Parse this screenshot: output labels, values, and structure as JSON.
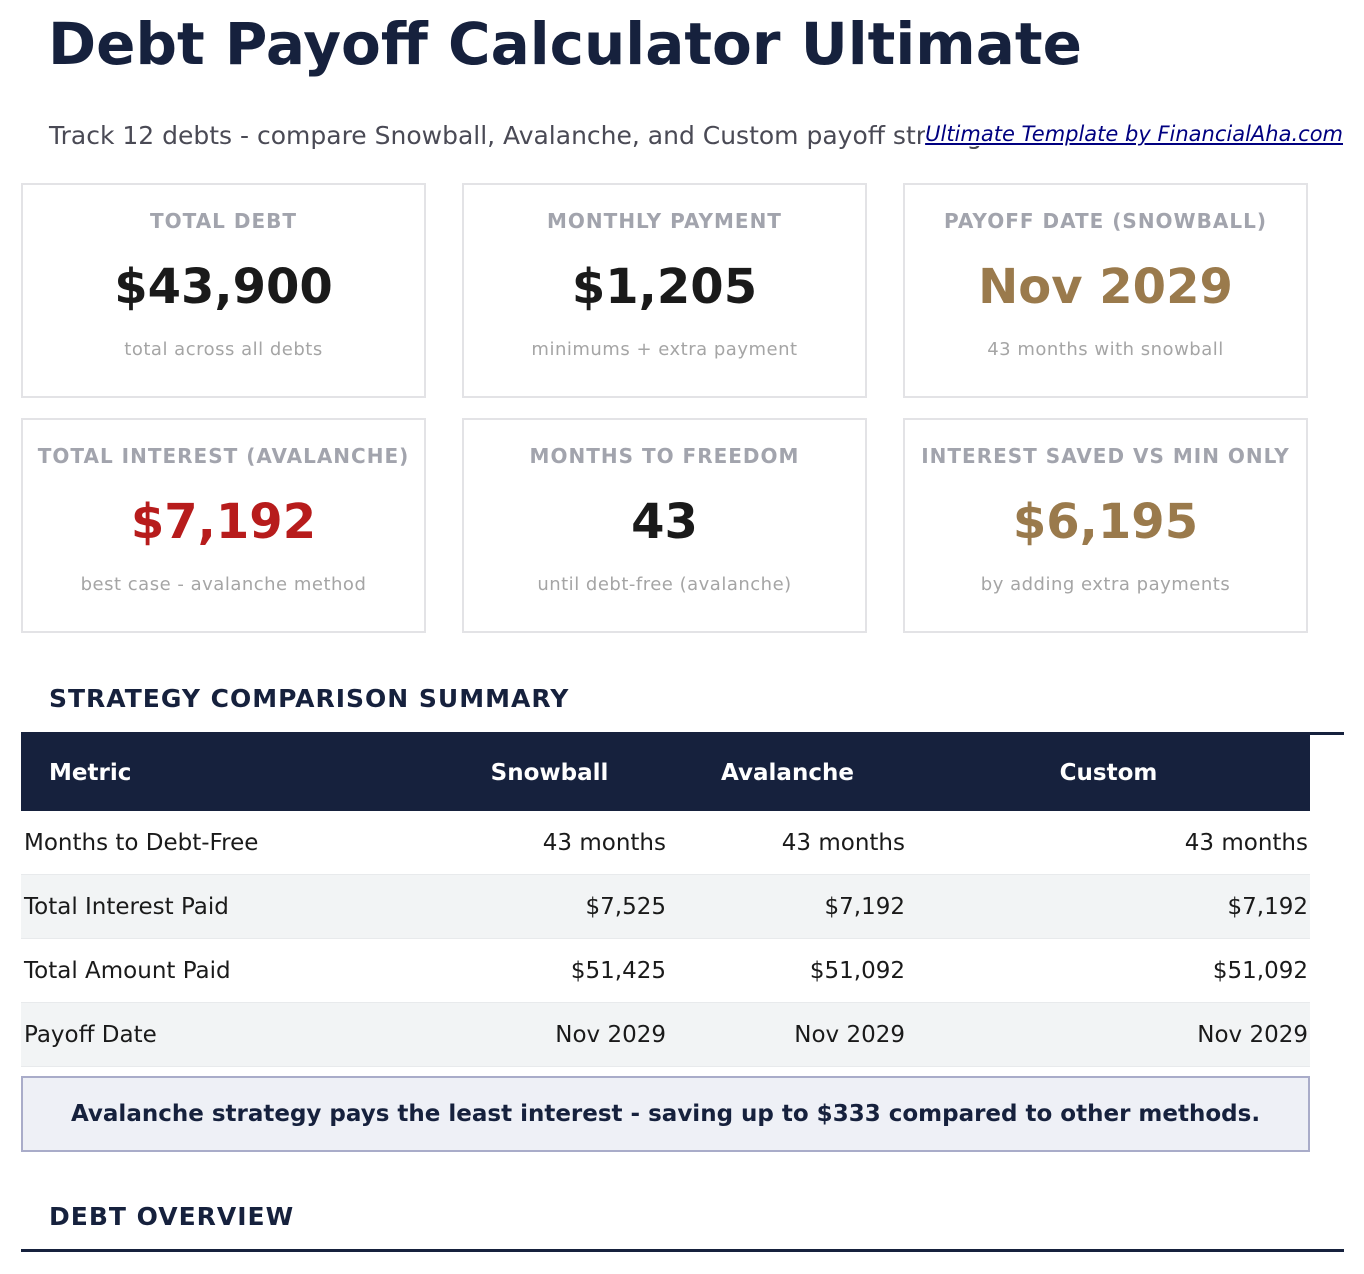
{
  "header": {
    "title": "Debt Payoff Calculator Ultimate",
    "subtitle": "Track 12 debts - compare Snowball, Avalanche, and Custom payoff strategies",
    "credit": "Ultimate Template by FinancialAha.com"
  },
  "cards": [
    {
      "label": "TOTAL DEBT",
      "value": "$43,900",
      "sub": "total across all debts",
      "color": "#1a1a1a"
    },
    {
      "label": "MONTHLY PAYMENT",
      "value": "$1,205",
      "sub": "minimums + extra payment",
      "color": "#1a1a1a"
    },
    {
      "label": "PAYOFF DATE (SNOWBALL)",
      "value": "Nov 2029",
      "sub": "43 months with snowball",
      "color": "#9a7a4c"
    },
    {
      "label": "TOTAL INTEREST (AVALANCHE)",
      "value": "$7,192",
      "sub": "best case - avalanche method",
      "color": "#b71c1c"
    },
    {
      "label": "MONTHS TO FREEDOM",
      "value": "43",
      "sub": "until debt-free (avalanche)",
      "color": "#1a1a1a"
    },
    {
      "label": "INTEREST SAVED VS MIN ONLY",
      "value": "$6,195",
      "sub": "by adding extra payments",
      "color": "#9a7a4c"
    }
  ],
  "comparison": {
    "title": "STRATEGY COMPARISON SUMMARY",
    "headers": [
      "Metric",
      "Snowball",
      "Avalanche",
      "Custom"
    ],
    "rows": [
      [
        "Months to Debt-Free",
        "43 months",
        "43 months",
        "43 months"
      ],
      [
        "Total Interest Paid",
        "$7,525",
        "$7,192",
        "$7,192"
      ],
      [
        "Total Amount Paid",
        "$51,425",
        "$51,092",
        "$51,092"
      ],
      [
        "Payoff Date",
        "Nov 2029",
        "Nov 2029",
        "Nov 2029"
      ]
    ],
    "note": "Avalanche strategy pays the least interest - saving up to $333 compared to other methods."
  },
  "overview": {
    "title": "DEBT OVERVIEW"
  }
}
